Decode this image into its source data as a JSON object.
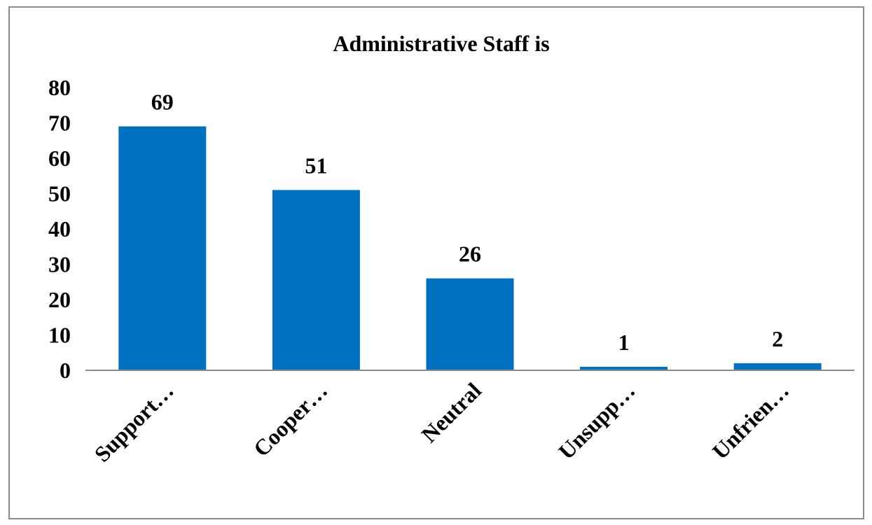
{
  "chart_data": {
    "type": "bar",
    "title": "Administrative Staff is",
    "categories": [
      "Support…",
      "Cooper…",
      "Neutral",
      "Unsupp…",
      "Unfrien…"
    ],
    "values": [
      69,
      51,
      26,
      1,
      2
    ],
    "data_labels": [
      "69",
      "51",
      "26",
      "1",
      "2"
    ],
    "xlabel": "",
    "ylabel": "",
    "ylim": [
      0,
      80
    ],
    "yticks": [
      "0",
      "10",
      "20",
      "30",
      "40",
      "50",
      "60",
      "70",
      "80"
    ],
    "grid": false,
    "legend": "none",
    "bar_color": "#0070C0",
    "axis_color": "#8c8c8c"
  }
}
